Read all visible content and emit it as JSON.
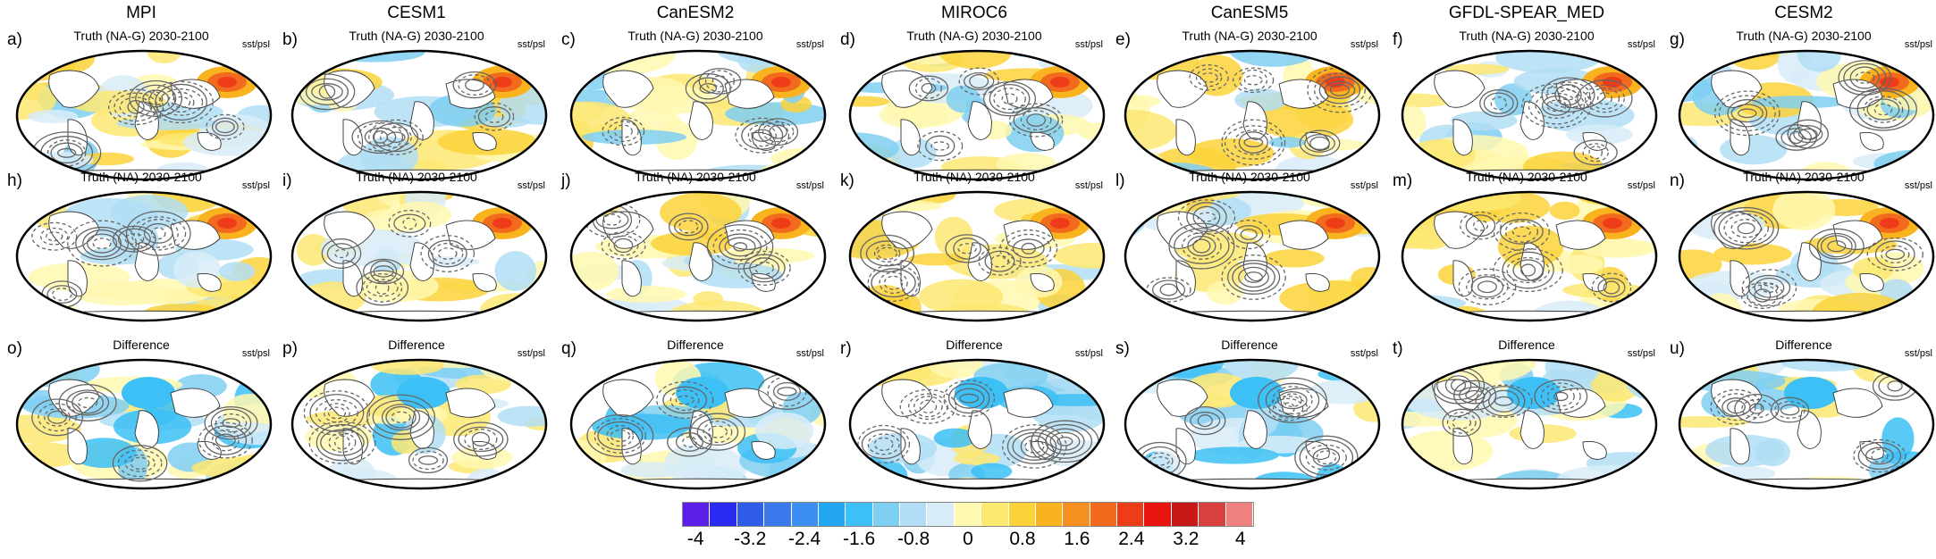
{
  "columns": [
    "MPI",
    "CESM1",
    "CanESM2",
    "MIROC6",
    "CanESM5",
    "GFDL-SPEAR_MED",
    "CESM2"
  ],
  "row_titles": [
    "Truth (NA-G) 2030-2100",
    "Truth (NA) 2030-2100",
    "Difference"
  ],
  "variable_label": "sst/psl",
  "panel_letters": [
    [
      "a)",
      "b)",
      "c)",
      "d)",
      "e)",
      "f)",
      "g)"
    ],
    [
      "h)",
      "i)",
      "j)",
      "k)",
      "l)",
      "m)",
      "n)"
    ],
    [
      "o)",
      "p)",
      "q)",
      "r)",
      "s)",
      "t)",
      "u)"
    ]
  ],
  "colorbar": {
    "colors": [
      "#5a1ee8",
      "#2a2af0",
      "#2f5ce8",
      "#3a78ec",
      "#3b8ff0",
      "#22a6f2",
      "#3cc0f5",
      "#7fcff2",
      "#b2def5",
      "#d8ecf8",
      "#fff8b0",
      "#fde872",
      "#fbd23a",
      "#f8b31f",
      "#f59020",
      "#f26a1e",
      "#ee3b18",
      "#e81410",
      "#c81818",
      "#d84040",
      "#ee8080"
    ],
    "tick_labels": [
      "-4",
      "-3.2",
      "-2.4",
      "-1.6",
      "-0.8",
      "0",
      "0.8",
      "1.6",
      "2.4",
      "3.2",
      "4"
    ]
  }
}
